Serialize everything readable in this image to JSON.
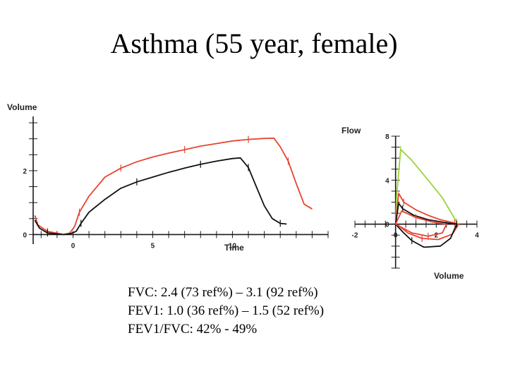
{
  "title": "Asthma (55 year, female)",
  "chart_data": [
    {
      "type": "line",
      "xlabel": "Time",
      "ylabel": "Volume",
      "xlim": [
        -2.5,
        16
      ],
      "ylim": [
        -0.3,
        3.7
      ],
      "x_ticks": [
        0,
        5,
        10
      ],
      "y_ticks": [
        0,
        2
      ],
      "series": [
        {
          "color": "#e8432f",
          "points": [
            [
              -2.4,
              0.6
            ],
            [
              -2.2,
              0.3
            ],
            [
              -1.6,
              0.1
            ],
            [
              -0.6,
              0.0
            ],
            [
              -0.2,
              0.05
            ],
            [
              0.1,
              0.25
            ],
            [
              0.4,
              0.7
            ],
            [
              1,
              1.2
            ],
            [
              1.5,
              1.5
            ],
            [
              2,
              1.8
            ],
            [
              3,
              2.08
            ],
            [
              4,
              2.28
            ],
            [
              5,
              2.43
            ],
            [
              6,
              2.55
            ],
            [
              7,
              2.66
            ],
            [
              8,
              2.77
            ],
            [
              9,
              2.85
            ],
            [
              10,
              2.93
            ],
            [
              11,
              2.98
            ],
            [
              12,
              3.01
            ],
            [
              12.6,
              3.02
            ],
            [
              13,
              2.75
            ],
            [
              13.5,
              2.3
            ],
            [
              14,
              1.6
            ],
            [
              14.5,
              0.95
            ],
            [
              15,
              0.8
            ]
          ]
        },
        {
          "color": "#111111",
          "points": [
            [
              -2.4,
              0.45
            ],
            [
              -2.1,
              0.2
            ],
            [
              -1.6,
              0.05
            ],
            [
              -0.6,
              0.0
            ],
            [
              -0.2,
              0.02
            ],
            [
              0.2,
              0.1
            ],
            [
              0.5,
              0.35
            ],
            [
              1,
              0.7
            ],
            [
              2,
              1.1
            ],
            [
              3,
              1.45
            ],
            [
              4,
              1.65
            ],
            [
              5,
              1.8
            ],
            [
              6,
              1.95
            ],
            [
              7,
              2.08
            ],
            [
              8,
              2.2
            ],
            [
              9,
              2.3
            ],
            [
              10,
              2.38
            ],
            [
              10.5,
              2.4
            ],
            [
              11,
              2.1
            ],
            [
              11.5,
              1.5
            ],
            [
              12,
              0.9
            ],
            [
              12.5,
              0.5
            ],
            [
              13,
              0.35
            ],
            [
              13.4,
              0.33
            ]
          ]
        }
      ]
    },
    {
      "type": "line",
      "xlabel": "Volume",
      "ylabel": "Flow",
      "xlim": [
        -2,
        4
      ],
      "ylim": [
        -4,
        8
      ],
      "x_ticks": [
        -2,
        0,
        2,
        4
      ],
      "y_ticks": [
        0,
        4,
        8
      ],
      "series": [
        {
          "color": "#9ed23a",
          "points": [
            [
              0,
              0
            ],
            [
              0.05,
              2.5
            ],
            [
              0.25,
              6.8
            ],
            [
              0.8,
              5.8
            ],
            [
              1.6,
              4.0
            ],
            [
              2.3,
              2.4
            ],
            [
              3.0,
              0.2
            ]
          ]
        },
        {
          "color": "#e8432f",
          "points": [
            [
              0,
              0
            ],
            [
              0.15,
              2.8
            ],
            [
              0.4,
              2.0
            ],
            [
              1.0,
              1.3
            ],
            [
              1.6,
              0.8
            ],
            [
              2.2,
              0.4
            ],
            [
              2.9,
              0.1
            ],
            [
              3.1,
              0
            ],
            [
              2.8,
              -0.9
            ],
            [
              2.1,
              -1.4
            ],
            [
              1.3,
              -1.3
            ],
            [
              0.6,
              -0.8
            ],
            [
              0.2,
              -0.2
            ],
            [
              0,
              0
            ]
          ]
        },
        {
          "color": "#111111",
          "points": [
            [
              0,
              0
            ],
            [
              0.15,
              1.9
            ],
            [
              0.35,
              1.4
            ],
            [
              0.9,
              0.8
            ],
            [
              1.6,
              0.4
            ],
            [
              2.4,
              0.15
            ],
            [
              3.0,
              0
            ],
            [
              2.7,
              -1.3
            ],
            [
              2.2,
              -2.0
            ],
            [
              1.4,
              -2.1
            ],
            [
              0.8,
              -1.5
            ],
            [
              0.4,
              -0.8
            ],
            [
              0.1,
              -0.2
            ],
            [
              0,
              0
            ]
          ]
        },
        {
          "color": "#e8432f",
          "points": [
            [
              0,
              0
            ],
            [
              0.3,
              1.2
            ],
            [
              1.0,
              0.6
            ],
            [
              1.8,
              0.2
            ],
            [
              2.5,
              0
            ],
            [
              2.3,
              -0.8
            ],
            [
              1.6,
              -1.1
            ],
            [
              0.8,
              -0.8
            ],
            [
              0.3,
              -0.3
            ],
            [
              0,
              0
            ]
          ]
        }
      ]
    }
  ],
  "stats": [
    "FVC: 2.4 (73 ref%) – 3.1 (92 ref%)",
    "FEV1: 1.0 (36 ref%) – 1.5 (52 ref%)",
    "FEV1/FVC: 42% - 49%"
  ]
}
